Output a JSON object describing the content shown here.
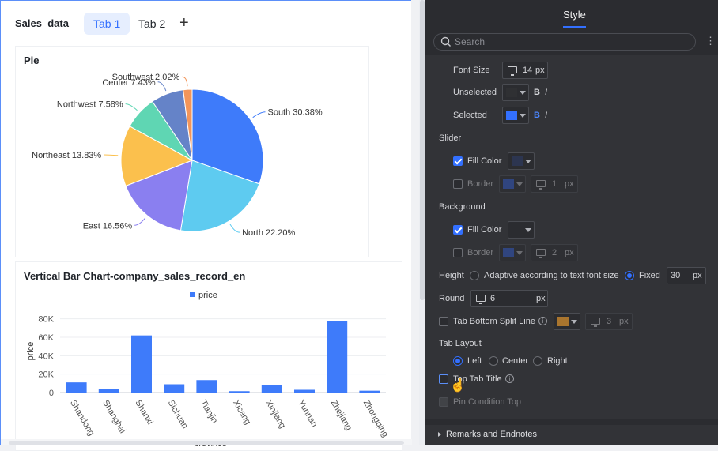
{
  "dashboard": {
    "title": "Sales_data",
    "tabs": [
      {
        "label": "Tab 1",
        "active": true
      },
      {
        "label": "Tab 2",
        "active": false
      }
    ],
    "add_tab": "+"
  },
  "pie_card": {
    "title": "Pie"
  },
  "bar_card": {
    "title": "Vertical Bar Chart-company_sales_record_en"
  },
  "chart_data": [
    {
      "type": "pie",
      "title": "Pie",
      "slices": [
        {
          "label": "South",
          "value": 30.38,
          "display": "South 30.38%",
          "color": "#3e7bfa"
        },
        {
          "label": "North",
          "value": 22.2,
          "display": "North 22.20%",
          "color": "#5ecbf0"
        },
        {
          "label": "East",
          "value": 16.56,
          "display": "East 16.56%",
          "color": "#8a7ff0"
        },
        {
          "label": "Northeast",
          "value": 13.83,
          "display": "Northeast 13.83%",
          "color": "#fbc04d"
        },
        {
          "label": "Northwest",
          "value": 7.58,
          "display": "Northwest 7.58%",
          "color": "#5fd6b3"
        },
        {
          "label": "Center",
          "value": 7.43,
          "display": "Center 7.43%",
          "color": "#6583c8"
        },
        {
          "label": "Southwest",
          "value": 2.02,
          "display": "Southwest 2.02%",
          "color": "#f2955a"
        }
      ]
    },
    {
      "type": "bar",
      "title": "Vertical Bar Chart-company_sales_record_en",
      "legend": "price",
      "xlabel": "province",
      "ylabel": "price",
      "ylim": [
        0,
        90000
      ],
      "yticks": [
        {
          "v": 0,
          "label": "0"
        },
        {
          "v": 20000,
          "label": "20K"
        },
        {
          "v": 40000,
          "label": "40K"
        },
        {
          "v": 60000,
          "label": "60K"
        },
        {
          "v": 80000,
          "label": "80K"
        }
      ],
      "categories": [
        "Shandong",
        "Shanghai",
        "Shanxi",
        "Sichuan",
        "Tianjin",
        "Xicang",
        "Xinjiang",
        "Yunnan",
        "Zhejiang",
        "Zhongqing"
      ],
      "values": [
        11000,
        3500,
        62000,
        9000,
        13500,
        1500,
        8500,
        3000,
        78000,
        2000
      ],
      "color": "#3e7bfa"
    }
  ],
  "panel": {
    "tab": "Style",
    "search_placeholder": "Search",
    "more": "⋮",
    "font_size_label": "Font Size",
    "font_size_value": "14",
    "unit_px": "px",
    "unselected_label": "Unselected",
    "selected_label": "Selected",
    "bold": "B",
    "italic": "I",
    "slider_label": "Slider",
    "slider_fill_label": "Fill Color",
    "slider_border_label": "Border",
    "slider_border_width": "1",
    "background_label": "Background",
    "bg_fill_label": "Fill Color",
    "bg_border_label": "Border",
    "bg_border_width": "2",
    "height_label": "Height",
    "height_adaptive": "Adaptive according to text font size",
    "height_fixed": "Fixed",
    "height_value": "30",
    "round_label": "Round",
    "round_value": "6",
    "split_line_label": "Tab Bottom Split Line",
    "split_line_width": "3",
    "layout_label": "Tab Layout",
    "layout_left": "Left",
    "layout_center": "Center",
    "layout_right": "Right",
    "top_tab_title": "Top Tab Title",
    "pin_condition": "Pin Condition Top",
    "remarks": "Remarks and Endnotes",
    "colors": {
      "unselected": "#2f3033",
      "selected": "#3370ff",
      "slider_fill": "#2c3550",
      "slider_border": "#2f5bd8",
      "bg_fill": "#2b2c30",
      "bg_border": "#2f5bd8",
      "split_line": "#a9752e"
    }
  }
}
